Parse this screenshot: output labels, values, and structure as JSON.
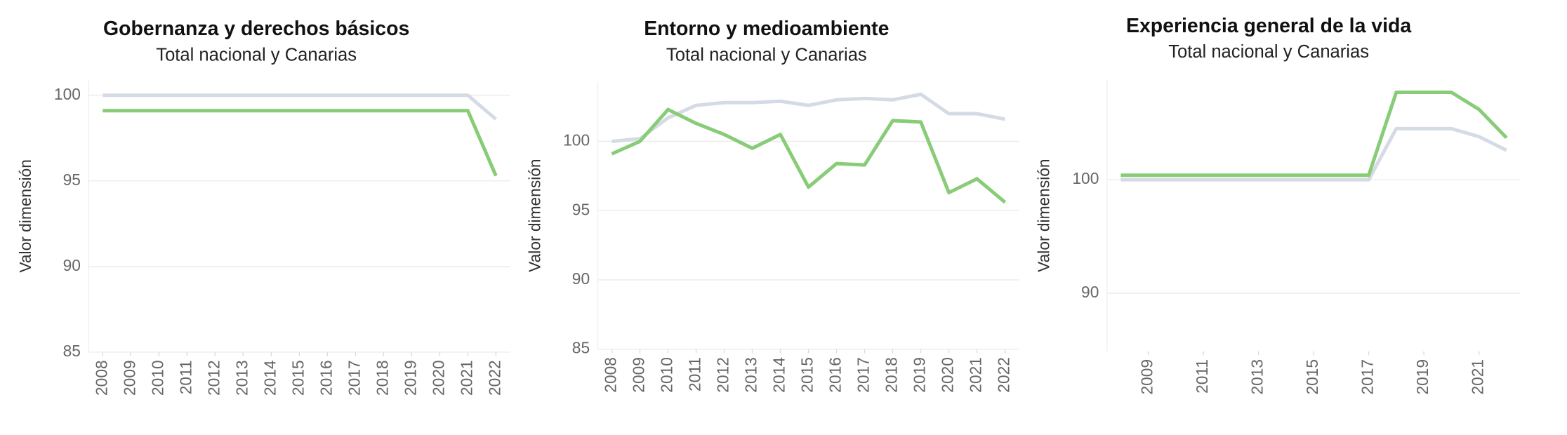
{
  "chart_data": [
    {
      "type": "line",
      "title": "Gobernanza y derechos básicos",
      "subtitle": "Total nacional y Canarias",
      "y_label": "Valor dimensión",
      "x": [
        2008,
        2009,
        2010,
        2011,
        2012,
        2013,
        2014,
        2015,
        2016,
        2017,
        2018,
        2019,
        2020,
        2021,
        2022
      ],
      "xlim": [
        2007.5,
        2022.5
      ],
      "xticks": [
        2008,
        2009,
        2010,
        2011,
        2012,
        2013,
        2014,
        2015,
        2016,
        2017,
        2018,
        2019,
        2020,
        2021,
        2022
      ],
      "ylim": [
        85,
        100.9
      ],
      "yticks": [
        85,
        90,
        95,
        100
      ],
      "grid": true,
      "series": [
        {
          "color": "#d5dbe5",
          "values": [
            100,
            100,
            100,
            100,
            100,
            100,
            100,
            100,
            100,
            100,
            100,
            100,
            100,
            100,
            98.6
          ]
        },
        {
          "color": "#88cc77",
          "values": [
            99.1,
            99.1,
            99.1,
            99.1,
            99.1,
            99.1,
            99.1,
            99.1,
            99.1,
            99.1,
            99.1,
            99.1,
            99.1,
            99.1,
            95.3
          ]
        }
      ]
    },
    {
      "type": "line",
      "title": "Entorno y medioambiente",
      "subtitle": "Total nacional y Canarias",
      "y_label": "Valor dimensión",
      "x": [
        2008,
        2009,
        2010,
        2011,
        2012,
        2013,
        2014,
        2015,
        2016,
        2017,
        2018,
        2019,
        2020,
        2021,
        2022
      ],
      "xlim": [
        2007.5,
        2022.5
      ],
      "xticks": [
        2008,
        2009,
        2010,
        2011,
        2012,
        2013,
        2014,
        2015,
        2016,
        2017,
        2018,
        2019,
        2020,
        2021,
        2022
      ],
      "ylim": [
        85,
        104.3
      ],
      "yticks": [
        85,
        90,
        95,
        100
      ],
      "grid": true,
      "series": [
        {
          "color": "#d5dbe5",
          "values": [
            100.0,
            100.2,
            101.7,
            102.6,
            102.8,
            102.8,
            102.9,
            102.6,
            103.0,
            103.1,
            103.0,
            103.4,
            102.0,
            102.0,
            101.6
          ]
        },
        {
          "color": "#88cc77",
          "values": [
            99.1,
            100.0,
            102.3,
            101.3,
            100.5,
            99.5,
            100.5,
            96.7,
            98.4,
            98.3,
            101.5,
            101.4,
            96.3,
            97.3,
            95.6
          ]
        }
      ]
    },
    {
      "type": "line",
      "title": "Experiencia general de la vida",
      "subtitle": "Total nacional y Canarias",
      "y_label": "Valor dimensión",
      "x": [
        2008,
        2009,
        2010,
        2011,
        2012,
        2013,
        2014,
        2015,
        2016,
        2017,
        2018,
        2019,
        2020,
        2021,
        2022
      ],
      "xlim": [
        2007.5,
        2022.5
      ],
      "xticks": [
        2009,
        2011,
        2013,
        2015,
        2017,
        2019,
        2021
      ],
      "ylim": [
        84.9,
        108.8
      ],
      "yticks": [
        90,
        100
      ],
      "grid": true,
      "series": [
        {
          "color": "#d5dbe5",
          "values": [
            100,
            100,
            100,
            100,
            100,
            100,
            100,
            100,
            100,
            100,
            104.5,
            104.5,
            104.5,
            103.8,
            102.6
          ]
        },
        {
          "color": "#88cc77",
          "values": [
            100.4,
            100.4,
            100.4,
            100.4,
            100.4,
            100.4,
            100.4,
            100.4,
            100.4,
            100.4,
            107.7,
            107.7,
            107.7,
            106.2,
            103.7
          ]
        }
      ]
    }
  ]
}
